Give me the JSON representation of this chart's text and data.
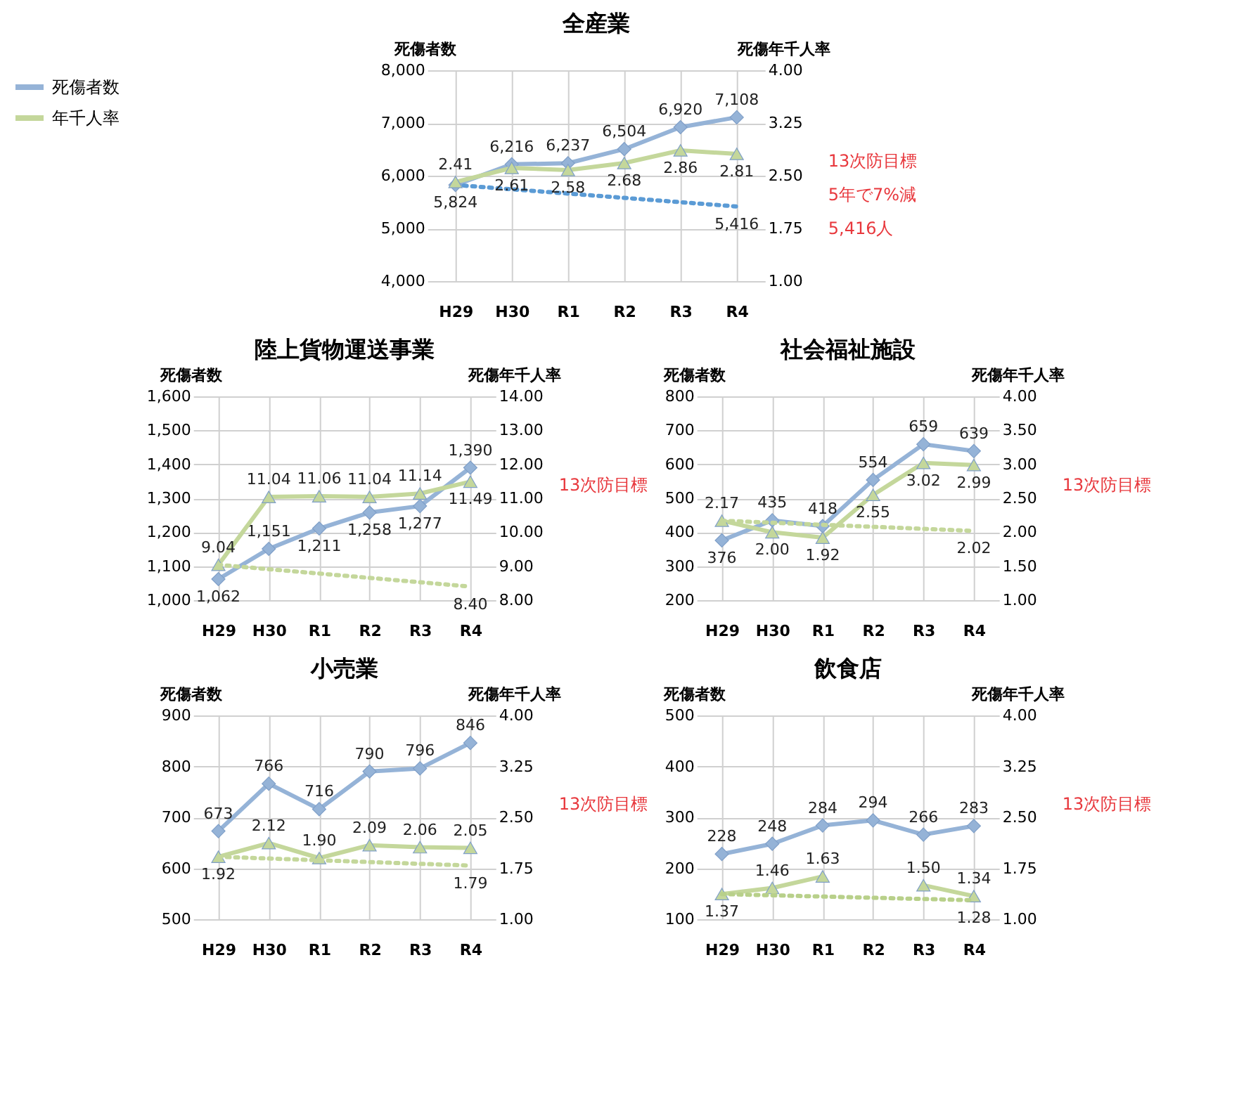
{
  "chart_data": [
    {
      "type": "line",
      "title": "全産業",
      "ylabel": "死傷者数",
      "y2label": "死傷年千人率",
      "categories": [
        "H29",
        "H30",
        "R1",
        "R2",
        "R3",
        "R4"
      ],
      "series": [
        {
          "name": "死傷者数",
          "color": "#95b3d7",
          "marker": "diamond",
          "values": [
            5824,
            6216,
            6237,
            6504,
            6920,
            7108
          ],
          "value_labels": [
            "5,824",
            "6,216",
            "6,237",
            "6,504",
            "6,920",
            "7,108"
          ]
        },
        {
          "name": "年千人率",
          "color": "#c4d79b",
          "marker": "triangle",
          "axis": "y2",
          "values": [
            2.41,
            2.61,
            2.58,
            2.68,
            2.86,
            2.81
          ],
          "value_labels": [
            "2.41",
            "2.61",
            "2.58",
            "2.68",
            "2.86",
            "2.81"
          ]
        },
        {
          "type": "line",
          "color": "#5b9bd5",
          "marker": "none",
          "line_style": "dotted",
          "x": [
            "H29",
            "R4"
          ],
          "values": [
            5824,
            5416
          ],
          "value_labels": [
            null,
            "5,416"
          ]
        }
      ],
      "ylim": [
        4000,
        8000
      ],
      "yticks": [
        {
          "value": 4000,
          "label": "4,000"
        },
        {
          "value": 5000,
          "label": "5,000"
        },
        {
          "value": 6000,
          "label": "6,000"
        },
        {
          "value": 7000,
          "label": "7,000"
        },
        {
          "value": 8000,
          "label": "8,000"
        }
      ],
      "y2lim": [
        1,
        4
      ],
      "y2ticks": [
        {
          "value": 1,
          "label": "1.00"
        },
        {
          "value": 1.75,
          "label": "1.75"
        },
        {
          "value": 2.5,
          "label": "2.50"
        },
        {
          "value": 3.25,
          "label": "3.25"
        },
        {
          "value": 4,
          "label": "4.00"
        }
      ],
      "grid": true,
      "legend": "left",
      "annotations": [
        "13次防目標",
        "5年で7%減",
        "5,416人"
      ]
    },
    {
      "type": "line",
      "title": "陸上貨物運送事業",
      "ylabel": "死傷者数",
      "y2label": "死傷年千人率",
      "categories": [
        "H29",
        "H30",
        "R1",
        "R2",
        "R3",
        "R4"
      ],
      "series": [
        {
          "color": "#95b3d7",
          "marker": "diamond",
          "values": [
            1062,
            1151,
            1211,
            1258,
            1277,
            1390
          ],
          "value_labels": [
            "1,062",
            "1,151",
            "1,211",
            "1,258",
            "1,277",
            "1,390"
          ]
        },
        {
          "color": "#c4d79b",
          "marker": "triangle",
          "axis": "y2",
          "values": [
            9.04,
            11.04,
            11.06,
            11.04,
            11.14,
            11.49
          ],
          "value_labels": [
            "9.04",
            "11.04",
            "11.06",
            "11.04",
            "11.14",
            "11.49"
          ]
        },
        {
          "type": "line",
          "color": "#c4d79b",
          "marker": "none",
          "line_style": "dotted",
          "axis": "y2",
          "x": [
            "H29",
            "R4"
          ],
          "values": [
            9.04,
            8.4
          ],
          "value_labels": [
            null,
            "8.40"
          ]
        }
      ],
      "ylim": [
        1000,
        1600
      ],
      "yticks": [
        {
          "value": 1000,
          "label": "1,000"
        },
        {
          "value": 1100,
          "label": "1,100"
        },
        {
          "value": 1200,
          "label": "1,200"
        },
        {
          "value": 1300,
          "label": "1,300"
        },
        {
          "value": 1400,
          "label": "1,400"
        },
        {
          "value": 1500,
          "label": "1,500"
        },
        {
          "value": 1600,
          "label": "1,600"
        }
      ],
      "y2lim": [
        8,
        14
      ],
      "y2ticks": [
        {
          "value": 8,
          "label": "8.00"
        },
        {
          "value": 9,
          "label": "9.00"
        },
        {
          "value": 10,
          "label": "10.00"
        },
        {
          "value": 11,
          "label": "11.00"
        },
        {
          "value": 12,
          "label": "12.00"
        },
        {
          "value": 13,
          "label": "13.00"
        },
        {
          "value": 14,
          "label": "14.00"
        }
      ],
      "grid": true,
      "annotations": [
        "13次防目標"
      ]
    },
    {
      "type": "line",
      "title": "社会福祉施設",
      "ylabel": "死傷者数",
      "y2label": "死傷年千人率",
      "categories": [
        "H29",
        "H30",
        "R1",
        "R2",
        "R3",
        "R4"
      ],
      "series": [
        {
          "color": "#95b3d7",
          "marker": "diamond",
          "values": [
            376,
            435,
            418,
            554,
            659,
            639
          ],
          "value_labels": [
            "376",
            "435",
            "418",
            "554",
            "659",
            "639"
          ]
        },
        {
          "color": "#c4d79b",
          "marker": "triangle",
          "axis": "y2",
          "values": [
            2.17,
            2.0,
            1.92,
            2.55,
            3.02,
            2.99
          ],
          "value_labels": [
            "2.17",
            "2.00",
            "1.92",
            "2.55",
            "3.02",
            "2.99"
          ]
        },
        {
          "type": "line",
          "color": "#c4d79b",
          "marker": "none",
          "line_style": "dotted",
          "axis": "y2",
          "x": [
            "H29",
            "R4"
          ],
          "values": [
            2.17,
            2.02
          ],
          "value_labels": [
            null,
            "2.02"
          ]
        }
      ],
      "ylim": [
        200,
        800
      ],
      "yticks": [
        200,
        300,
        400,
        500,
        600,
        700,
        800
      ],
      "y2lim": [
        1,
        4
      ],
      "y2ticks": [
        {
          "value": 1,
          "label": "1.00"
        },
        {
          "value": 1.5,
          "label": "1.50"
        },
        {
          "value": 2,
          "label": "2.00"
        },
        {
          "value": 2.5,
          "label": "2.50"
        },
        {
          "value": 3,
          "label": "3.00"
        },
        {
          "value": 3.5,
          "label": "3.50"
        },
        {
          "value": 4,
          "label": "4.00"
        }
      ],
      "grid": true,
      "annotations": [
        "13次防目標"
      ]
    },
    {
      "type": "line",
      "title": "小売業",
      "ylabel": "死傷者数",
      "y2label": "死傷年千人率",
      "categories": [
        "H29",
        "H30",
        "R1",
        "R2",
        "R3",
        "R4"
      ],
      "series": [
        {
          "color": "#95b3d7",
          "marker": "diamond",
          "values": [
            673,
            766,
            716,
            790,
            796,
            846
          ],
          "value_labels": [
            "673",
            "766",
            "716",
            "790",
            "796",
            "846"
          ]
        },
        {
          "color": "#c4d79b",
          "marker": "triangle",
          "axis": "y2",
          "values": [
            1.92,
            2.12,
            1.9,
            2.09,
            2.06,
            2.05
          ],
          "value_labels": [
            "1.92",
            "2.12",
            "1.90",
            "2.09",
            "2.06",
            "2.05"
          ]
        },
        {
          "type": "line",
          "color": "#c4d79b",
          "marker": "none",
          "line_style": "dotted",
          "axis": "y2",
          "x": [
            "H29",
            "R4"
          ],
          "values": [
            1.92,
            1.79
          ],
          "value_labels": [
            null,
            "1.79"
          ]
        }
      ],
      "ylim": [
        500,
        900
      ],
      "yticks": [
        500,
        600,
        700,
        800,
        900
      ],
      "y2lim": [
        1,
        4
      ],
      "y2ticks": [
        {
          "value": 1,
          "label": "1.00"
        },
        {
          "value": 1.75,
          "label": "1.75"
        },
        {
          "value": 2.5,
          "label": "2.50"
        },
        {
          "value": 3.25,
          "label": "3.25"
        },
        {
          "value": 4,
          "label": "4.00"
        }
      ],
      "grid": true,
      "annotations": [
        "13次防目標"
      ]
    },
    {
      "type": "line",
      "title": "飲食店",
      "ylabel": "死傷者数",
      "y2label": "死傷年千人率",
      "categories": [
        "H29",
        "H30",
        "R1",
        "R2",
        "R3",
        "R4"
      ],
      "series": [
        {
          "color": "#95b3d7",
          "marker": "diamond",
          "values": [
            228,
            248,
            284,
            294,
            266,
            283
          ],
          "value_labels": [
            "228",
            "248",
            "284",
            "294",
            "266",
            "283"
          ]
        },
        {
          "color": "#c4d79b",
          "marker": "triangle",
          "axis": "y2",
          "values": [
            1.37,
            1.46,
            1.63,
            null,
            1.5,
            1.34
          ],
          "value_labels": [
            "1.37",
            "1.46",
            "1.63",
            null,
            "1.50",
            "1.34"
          ]
        },
        {
          "type": "line",
          "color": "#b8d08a",
          "marker": "none",
          "line_style": "dotted",
          "axis": "y2",
          "x": [
            "H29",
            "R4"
          ],
          "values": [
            1.37,
            1.28
          ],
          "value_labels": [
            null,
            "1.28"
          ]
        }
      ],
      "ylim": [
        100,
        500
      ],
      "yticks": [
        100,
        200,
        300,
        400,
        500
      ],
      "y2lim": [
        1,
        4
      ],
      "y2ticks": [
        {
          "value": 1,
          "label": "1.00"
        },
        {
          "value": 1.75,
          "label": "1.75"
        },
        {
          "value": 2.5,
          "label": "2.50"
        },
        {
          "value": 3.25,
          "label": "3.25"
        },
        {
          "value": 4,
          "label": "4.00"
        }
      ],
      "grid": true,
      "annotations": [
        "13次防目標"
      ]
    }
  ]
}
